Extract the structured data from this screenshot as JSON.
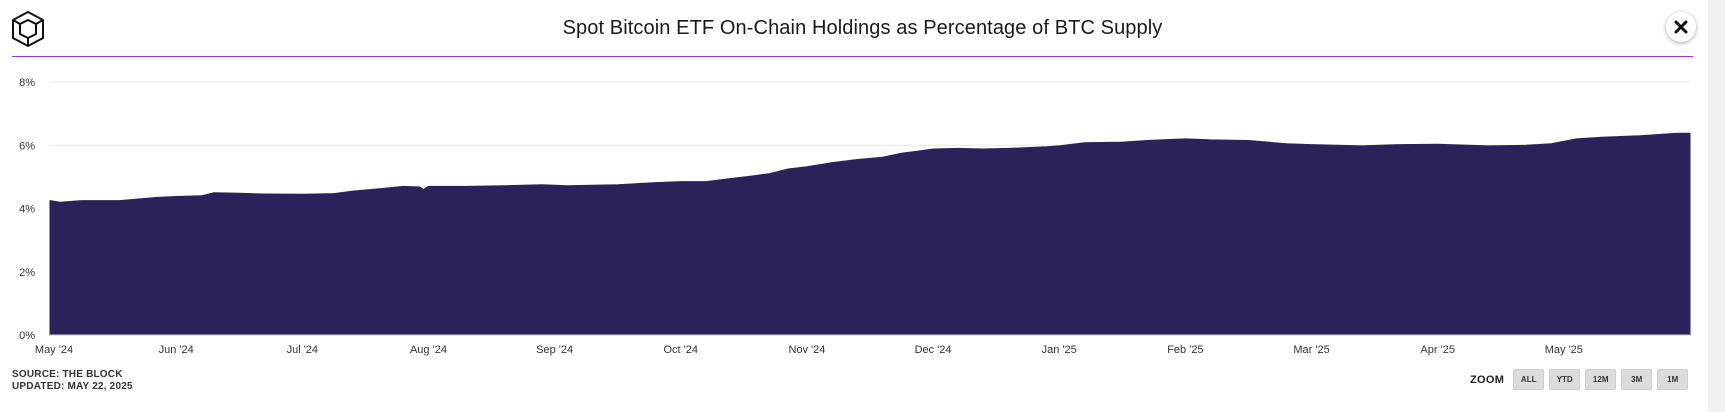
{
  "header": {
    "title": "Spot Bitcoin ETF On-Chain Holdings as Percentage of BTC Supply"
  },
  "footer": {
    "source": "SOURCE: THE BLOCK",
    "updated": "UPDATED: MAY 22, 2025"
  },
  "zoom": {
    "label": "ZOOM",
    "buttons": [
      "ALL",
      "YTD",
      "12M",
      "3M",
      "1M"
    ]
  },
  "colors": {
    "area": "#2a235a",
    "accent": "#9b30e8",
    "grid": "#e6e6e6"
  },
  "chart_data": {
    "type": "area",
    "title": "Spot Bitcoin ETF On-Chain Holdings as Percentage of BTC Supply",
    "xlabel": "",
    "ylabel": "",
    "x_range": [
      0,
      13
    ],
    "ylim": [
      0,
      8
    ],
    "yticks": [
      0,
      2,
      4,
      6,
      8
    ],
    "ytick_labels": [
      "0%",
      "2%",
      "4%",
      "6%",
      "8%"
    ],
    "xtick_positions": [
      0,
      1,
      2,
      3,
      4,
      5,
      6,
      7,
      8,
      9,
      10,
      11,
      12
    ],
    "xtick_labels": [
      "May '24",
      "Jun '24",
      "Jul '24",
      "Aug '24",
      "Sep '24",
      "Oct '24",
      "Nov '24",
      "Dec '24",
      "Jan '25",
      "Feb '25",
      "Mar '25",
      "Apr '25",
      "May '25"
    ],
    "series": [
      {
        "name": "ETF holdings % of BTC supply",
        "x": [
          0,
          0.08,
          0.25,
          0.55,
          0.7,
          0.85,
          1.0,
          1.2,
          1.3,
          1.5,
          1.7,
          2.0,
          2.25,
          2.4,
          2.6,
          2.8,
          2.93,
          2.96,
          3.0,
          3.3,
          3.6,
          3.9,
          4.1,
          4.5,
          4.8,
          5.0,
          5.2,
          5.4,
          5.55,
          5.7,
          5.85,
          6.0,
          6.2,
          6.4,
          6.6,
          6.75,
          6.85,
          7.0,
          7.2,
          7.4,
          7.6,
          7.9,
          8.0,
          8.2,
          8.5,
          8.7,
          8.85,
          9.0,
          9.2,
          9.5,
          9.8,
          10.0,
          10.4,
          10.7,
          11.0,
          11.4,
          11.7,
          11.9,
          12.1,
          12.3,
          12.6,
          12.9
        ],
        "values": [
          4.25,
          4.2,
          4.25,
          4.25,
          4.3,
          4.35,
          4.38,
          4.4,
          4.5,
          4.48,
          4.46,
          4.45,
          4.47,
          4.55,
          4.62,
          4.7,
          4.68,
          4.6,
          4.7,
          4.7,
          4.72,
          4.75,
          4.72,
          4.75,
          4.82,
          4.85,
          4.85,
          4.95,
          5.02,
          5.1,
          5.25,
          5.32,
          5.45,
          5.55,
          5.62,
          5.75,
          5.8,
          5.88,
          5.9,
          5.88,
          5.9,
          5.95,
          5.98,
          6.08,
          6.1,
          6.15,
          6.18,
          6.2,
          6.17,
          6.15,
          6.05,
          6.02,
          5.98,
          6.02,
          6.03,
          5.98,
          6.0,
          6.05,
          6.2,
          6.25,
          6.3,
          6.38
        ]
      }
    ]
  }
}
